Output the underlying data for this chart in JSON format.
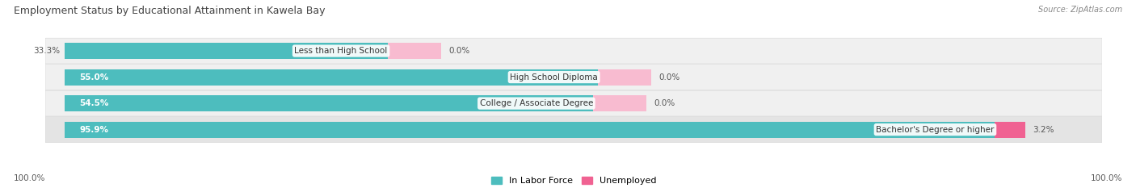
{
  "title": "Employment Status by Educational Attainment in Kawela Bay",
  "source": "Source: ZipAtlas.com",
  "categories": [
    "Less than High School",
    "High School Diploma",
    "College / Associate Degree",
    "Bachelor's Degree or higher"
  ],
  "in_labor_force": [
    33.3,
    55.0,
    54.5,
    95.9
  ],
  "unemployed": [
    0.0,
    0.0,
    0.0,
    3.2
  ],
  "labor_force_color": "#4dbdbe",
  "unemployed_color": "#f06292",
  "unemployed_color_light": "#f8bbd0",
  "axis_label_left": "100.0%",
  "axis_label_right": "100.0%",
  "legend_labor": "In Labor Force",
  "legend_unemployed": "Unemployed",
  "figsize": [
    14.06,
    2.33
  ],
  "dpi": 100,
  "xlim": [
    0,
    100
  ],
  "bar_height": 0.62,
  "row_bg_light": "#f0f0f0",
  "row_bg_dark": "#e4e4e4"
}
